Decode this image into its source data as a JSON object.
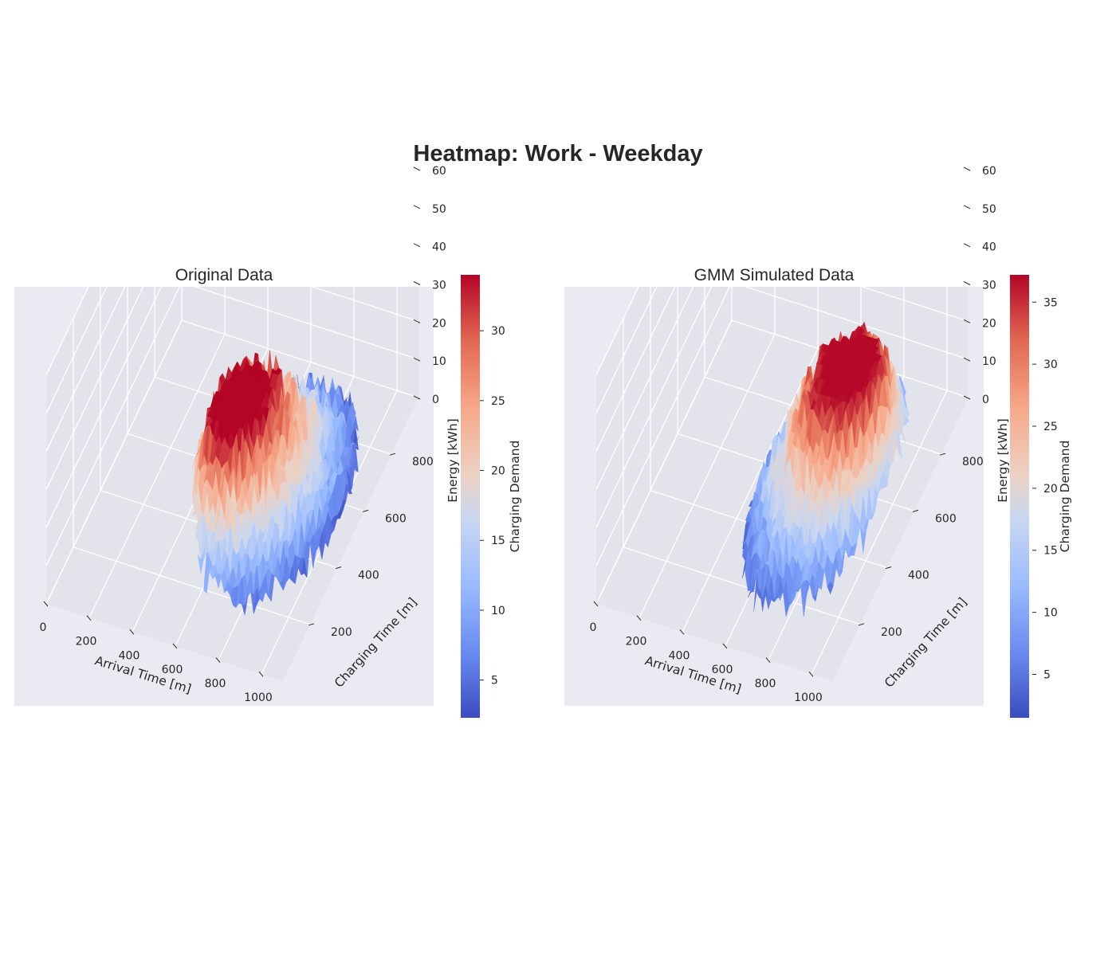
{
  "figure": {
    "title": "Heatmap: Work - Weekday"
  },
  "colormap": [
    "#3b4cc0",
    "#6788ee",
    "#9abbff",
    "#c9d7f0",
    "#edd1c2",
    "#f7a889",
    "#e26952",
    "#b40426"
  ],
  "chart_data": [
    {
      "type": "surface3d",
      "title": "Original Data",
      "xlabel": "Arrival Time [m]",
      "ylabel": "Charging Time [m]",
      "zlabel": "Energy [kWh]",
      "xticks": [
        0,
        200,
        400,
        600,
        800,
        1000
      ],
      "yticks": [
        200,
        400,
        600,
        800
      ],
      "zticks": [
        0,
        10,
        20,
        30,
        40,
        50,
        60
      ],
      "xlim": [
        0,
        1100
      ],
      "ylim": [
        0,
        1000
      ],
      "zlim": [
        0,
        60
      ],
      "surface_extent": {
        "x": [
          450,
          1050
        ],
        "y": [
          100,
          900
        ]
      },
      "surface_peak": {
        "x": 600,
        "y": 400,
        "z": 35
      },
      "colorbar": {
        "label": "Charging Demand",
        "range": [
          2.3,
          34
        ],
        "ticks": [
          5,
          10,
          15,
          20,
          25,
          30
        ]
      }
    },
    {
      "type": "surface3d",
      "title": "GMM Simulated Data",
      "xlabel": "Arrival Time [m]",
      "ylabel": "Charging Time [m]",
      "zlabel": "Energy [kWh]",
      "xticks": [
        0,
        200,
        400,
        600,
        800,
        1000
      ],
      "yticks": [
        200,
        400,
        600,
        800
      ],
      "zticks": [
        0,
        10,
        20,
        30,
        40,
        50,
        60
      ],
      "xlim": [
        0,
        1100
      ],
      "ylim": [
        0,
        1000
      ],
      "zlim": [
        0,
        60
      ],
      "surface_extent": {
        "x": [
          450,
          1050
        ],
        "y": [
          100,
          900
        ]
      },
      "surface_peak": {
        "x": 850,
        "y": 550,
        "z": 37
      },
      "colorbar": {
        "label": "Charging Demand",
        "range": [
          1.5,
          37.2
        ],
        "ticks": [
          5,
          10,
          15,
          20,
          25,
          30,
          35
        ]
      }
    }
  ]
}
